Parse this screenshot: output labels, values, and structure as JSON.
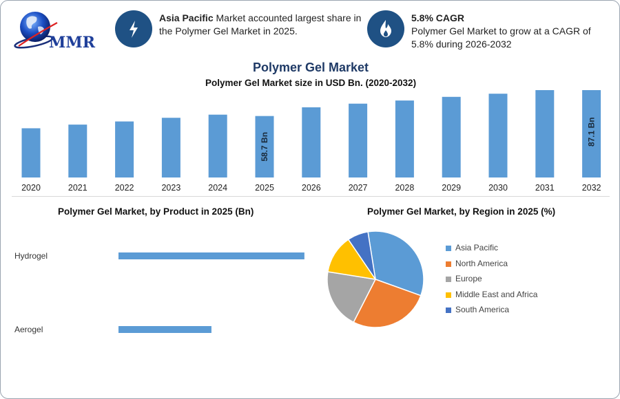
{
  "brand": {
    "logo_text": "MMR"
  },
  "info": [
    {
      "icon": "lightning-icon",
      "bold": "Asia Pacific",
      "text": " Market accounted largest share in the Polymer Gel Market in 2025."
    },
    {
      "icon": "flame-icon",
      "bold": "5.8% CAGR",
      "text": "Polymer Gel Market to grow at a CAGR of 5.8% during 2026-2032"
    }
  ],
  "title": "Polymer Gel Market",
  "colors": {
    "bar": "#5b9bd5",
    "icon_bg": "#1f5184",
    "title": "#1f3a66"
  },
  "chart_data": [
    {
      "type": "bar",
      "title": "Polymer Gel Market size in USD Bn. (2020-2032)",
      "categories": [
        "2020",
        "2021",
        "2022",
        "2023",
        "2024",
        "2025",
        "2026",
        "2027",
        "2028",
        "2029",
        "2030",
        "2031",
        "2032"
      ],
      "values": [
        47.0,
        50.5,
        53.5,
        57.0,
        60.0,
        58.7,
        67.0,
        70.5,
        73.5,
        77.0,
        80.0,
        83.5,
        87.1
      ],
      "data_labels": {
        "2025": "58.7 Bn",
        "2032": "87.1 Bn"
      },
      "ylim": [
        0,
        90
      ],
      "xlabel": "",
      "ylabel": "",
      "grid": false
    },
    {
      "type": "bar",
      "orientation": "horizontal",
      "title": "Polymer Gel Market, by Product in 2025 (Bn)",
      "categories": [
        "Hydrogel",
        "Aerogel"
      ],
      "values": [
        44,
        22
      ],
      "xlim": [
        0,
        60
      ]
    },
    {
      "type": "pie",
      "title": "Polymer Gel Market, by Region in 2025 (%)",
      "legend_position": "right",
      "series": [
        {
          "name": "Asia Pacific",
          "value": 33,
          "color": "#5b9bd5"
        },
        {
          "name": "North America",
          "value": 27,
          "color": "#ed7d31"
        },
        {
          "name": "Europe",
          "value": 20,
          "color": "#a5a5a5"
        },
        {
          "name": "Middle East and Africa",
          "value": 13,
          "color": "#ffc000"
        },
        {
          "name": "South America",
          "value": 7,
          "color": "#4472c4"
        }
      ]
    }
  ]
}
